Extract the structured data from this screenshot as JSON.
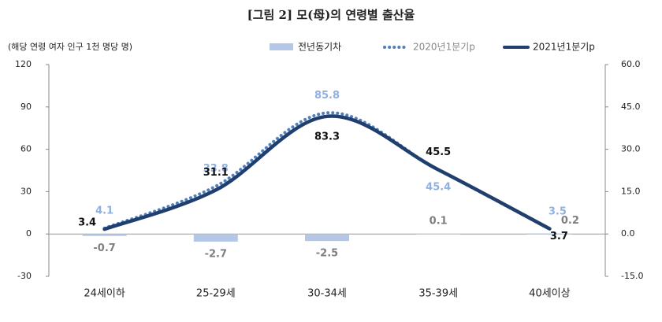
{
  "chart_data": {
    "type": "combo",
    "title": "[그림 2] 모(母)의 연령별 출산율",
    "y_label": "(해당 연령 여자 인구 1천 명당 명)",
    "categories": [
      "24세이하",
      "25-29세",
      "30-34세",
      "35-39세",
      "40세이상"
    ],
    "ylim": [
      -30,
      120
    ],
    "yticks": [
      -30,
      0,
      30,
      60,
      90,
      120
    ],
    "y2lim": [
      -15,
      60
    ],
    "y2ticks": [
      {
        "value": -15,
        "label": "-15.0"
      },
      {
        "value": 0,
        "label": "0.0"
      },
      {
        "value": 15,
        "label": "15.0"
      },
      {
        "value": 30,
        "label": "30.0"
      },
      {
        "value": 45,
        "label": "45.0"
      },
      {
        "value": 60,
        "label": "60.0"
      }
    ],
    "series": [
      {
        "name": "전년동기차",
        "type": "bar",
        "axis": "y2",
        "color": "#b4c7e7",
        "values": [
          -0.7,
          -2.7,
          -2.5,
          0.1,
          0.2
        ]
      },
      {
        "name": "2020년1분기p",
        "type": "line",
        "line_style": "dotted",
        "color": "#4f7fbf",
        "values": [
          4.1,
          33.8,
          85.8,
          45.4,
          3.5
        ]
      },
      {
        "name": "2021년1분기p",
        "type": "line",
        "line_style": "solid",
        "color": "#203f6e",
        "values": [
          3.4,
          31.1,
          83.3,
          45.5,
          3.7
        ]
      }
    ]
  }
}
